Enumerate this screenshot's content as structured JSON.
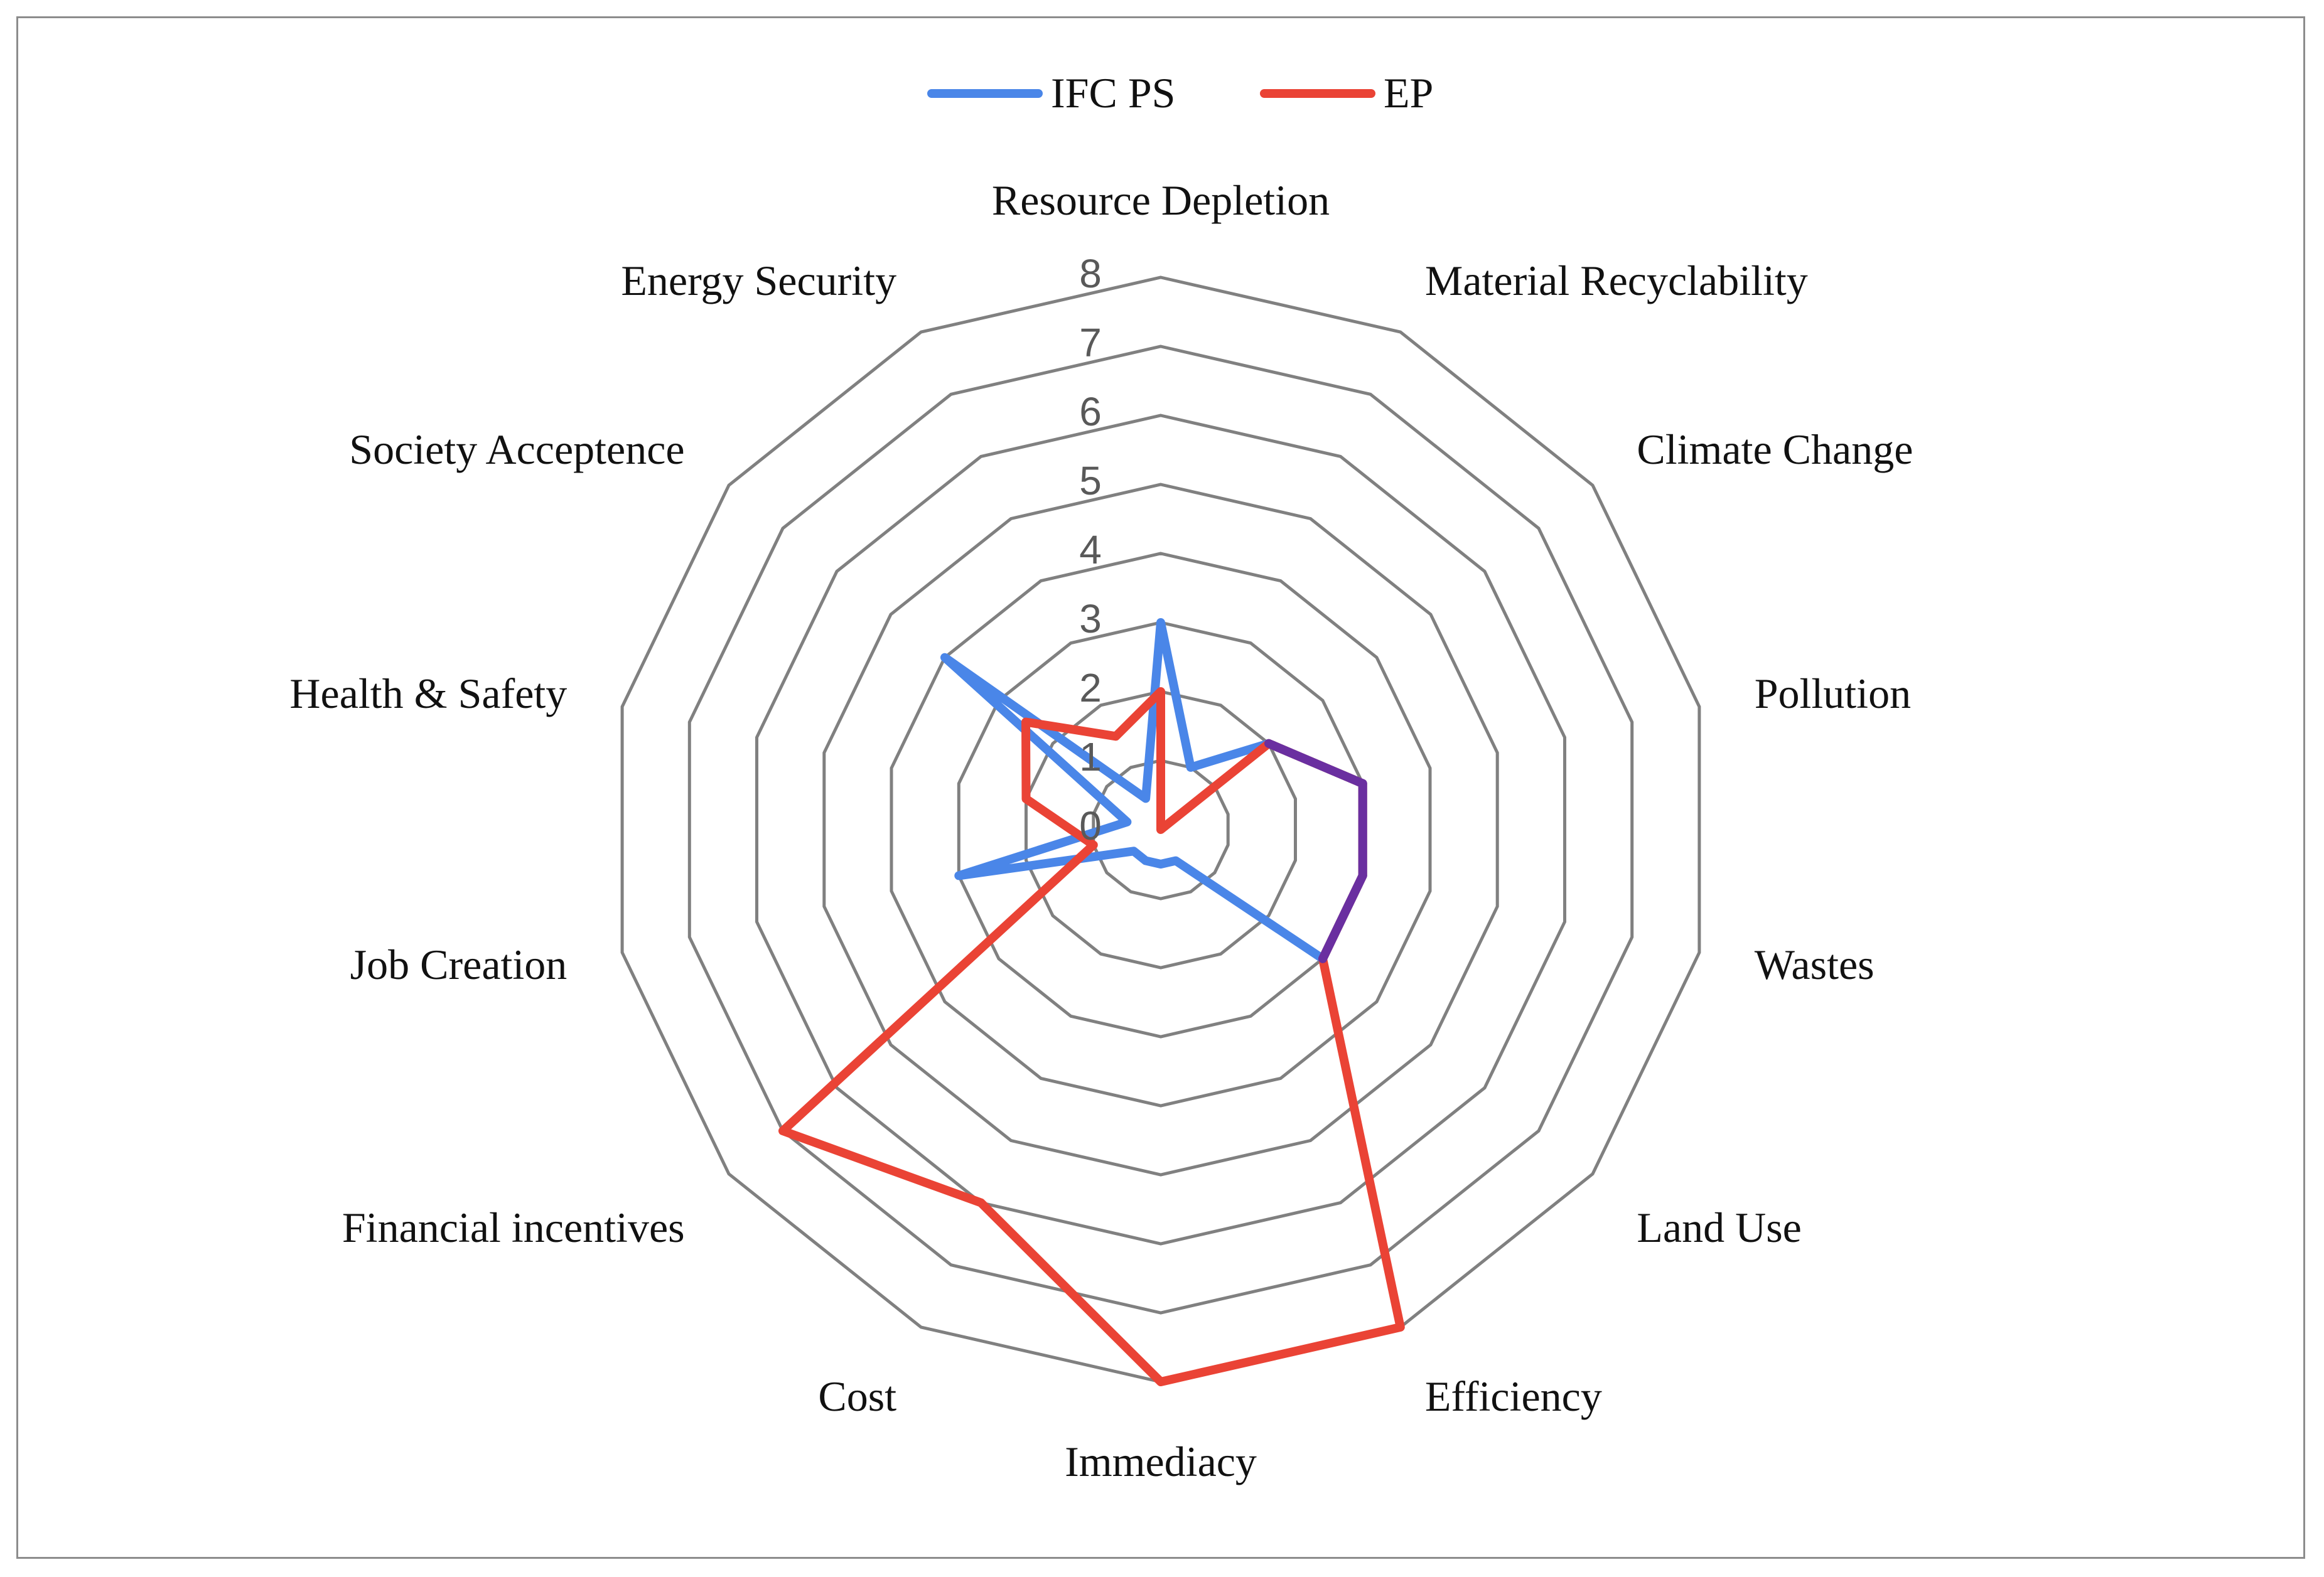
{
  "chart_data": {
    "type": "radar",
    "title": "",
    "axes": [
      "Resource Depletion",
      "Material Recyclability",
      "Climate Change",
      "Pollution",
      "Wastes",
      "Land Use",
      "Efficiency",
      "Immediacy",
      "Cost",
      "Financial incentives",
      "Job Creation",
      "Health & Safety",
      "Society Acceptence",
      "Energy Security"
    ],
    "rlim": [
      0,
      8
    ],
    "ticks": [
      "0",
      "1",
      "2",
      "3",
      "4",
      "5",
      "6",
      "7",
      "8"
    ],
    "series": [
      {
        "name": "IFC PS",
        "color": "#4a86e8",
        "values": [
          3,
          1,
          2,
          3,
          3,
          3,
          0.5,
          0.5,
          0.5,
          0.5,
          3,
          0.5,
          4,
          0.5
        ]
      },
      {
        "name": "EP",
        "color": "#ea4335",
        "values": [
          2,
          0,
          2,
          3,
          3,
          3,
          8,
          8,
          6,
          7,
          1,
          2,
          2.5,
          1.5
        ]
      }
    ],
    "overlap_color": "#6a2fa0",
    "grid_color": "#808080",
    "legend_position": "top-center"
  }
}
